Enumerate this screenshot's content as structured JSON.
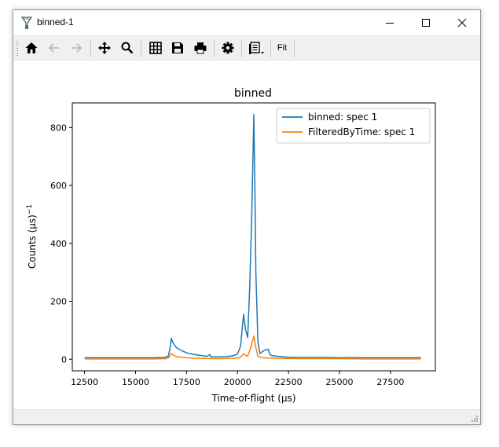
{
  "window": {
    "title": "binned-1"
  },
  "toolbar": {
    "icons": [
      "home-icon",
      "back-arrow-icon",
      "forward-arrow-icon",
      "move-icon",
      "zoom-icon",
      "grid-icon",
      "save-icon",
      "print-icon",
      "gear-icon",
      "document-options-icon"
    ],
    "fit_label": "Fit"
  },
  "chart_data": {
    "type": "line",
    "title": "binned",
    "xlabel": "Time-of-flight (μs)",
    "ylabel": "Counts (μs)",
    "ylabel_superscript": "−1",
    "xlim": [
      11900,
      29700
    ],
    "ylim": [
      -40,
      885
    ],
    "xticks": [
      12500,
      15000,
      17500,
      20000,
      22500,
      25000,
      27500
    ],
    "xtick_labels": [
      "12500",
      "15000",
      "17500",
      "20000",
      "22500",
      "25000",
      "27500"
    ],
    "yticks": [
      0,
      200,
      400,
      600,
      800
    ],
    "ytick_labels": [
      "0",
      "200",
      "400",
      "600",
      "800"
    ],
    "legend_position": "top-right",
    "series": [
      {
        "name": "binned: spec 1",
        "color": "#1f77b4",
        "x": [
          12500,
          13000,
          14000,
          15000,
          16000,
          16400,
          16600,
          16700,
          16750,
          16850,
          17000,
          17300,
          17600,
          18000,
          18500,
          18650,
          18700,
          18800,
          19000,
          19500,
          19800,
          20000,
          20150,
          20300,
          20400,
          20500,
          20600,
          20700,
          20800,
          20850,
          20900,
          21000,
          21100,
          21300,
          21500,
          21600,
          21700,
          22000,
          22500,
          23000,
          24000,
          25000,
          26000,
          27000,
          28000,
          29000
        ],
        "y": [
          5,
          5,
          5,
          5,
          5,
          6,
          10,
          40,
          72,
          55,
          40,
          28,
          20,
          15,
          10,
          16,
          8,
          8,
          8,
          9,
          12,
          18,
          45,
          155,
          100,
          75,
          250,
          500,
          845,
          600,
          300,
          60,
          20,
          30,
          35,
          15,
          12,
          10,
          7,
          6,
          6,
          5,
          5,
          5,
          5,
          5
        ]
      },
      {
        "name": "FilteredByTime: spec 1",
        "color": "#ff7f0e",
        "x": [
          12500,
          13000,
          14000,
          15000,
          16000,
          16500,
          16650,
          16750,
          16850,
          17000,
          17500,
          18000,
          19000,
          19800,
          20100,
          20300,
          20500,
          20650,
          20800,
          20900,
          21000,
          21200,
          21500,
          22000,
          23000,
          24000,
          25000,
          26000,
          27000,
          28000,
          29000
        ],
        "y": [
          1,
          1,
          1,
          1,
          1,
          2,
          6,
          20,
          14,
          9,
          5,
          3,
          2,
          3,
          5,
          18,
          10,
          40,
          80,
          40,
          10,
          5,
          4,
          3,
          2,
          2,
          2,
          1,
          1,
          1,
          1
        ]
      }
    ]
  }
}
